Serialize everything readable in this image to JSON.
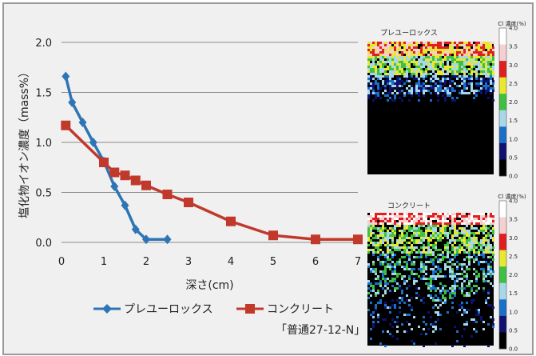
{
  "chart_data": {
    "type": "line",
    "xlabel": "深さ(cm)",
    "ylabel": "塩化物イオン濃度（mass%）",
    "xlim": [
      0,
      7
    ],
    "ylim": [
      0,
      2.0
    ],
    "x_ticks": [
      "0",
      "1",
      "2",
      "3",
      "4",
      "5",
      "6",
      "7"
    ],
    "y_ticks": [
      "0.0",
      "0.5",
      "1.0",
      "1.5",
      "2.0"
    ],
    "grid": true,
    "legend_position": "bottom",
    "series": [
      {
        "name": "プレユーロックス",
        "color": "#2e75b6",
        "marker": "diamond",
        "points": [
          [
            0.1,
            1.66
          ],
          [
            0.25,
            1.4
          ],
          [
            0.5,
            1.2
          ],
          [
            0.75,
            1.0
          ],
          [
            1.0,
            0.81
          ],
          [
            1.25,
            0.56
          ],
          [
            1.5,
            0.37
          ],
          [
            1.75,
            0.13
          ],
          [
            2.0,
            0.03
          ],
          [
            2.5,
            0.03
          ]
        ]
      },
      {
        "name": "コンクリート",
        "note": "「普通27-12-N」",
        "color": "#c0392b",
        "marker": "square",
        "points": [
          [
            0.1,
            1.17
          ],
          [
            1.0,
            0.8
          ],
          [
            1.25,
            0.7
          ],
          [
            1.5,
            0.67
          ],
          [
            1.75,
            0.62
          ],
          [
            2.0,
            0.57
          ],
          [
            2.5,
            0.48
          ],
          [
            3.0,
            0.4
          ],
          [
            4.0,
            0.21
          ],
          [
            5.0,
            0.07
          ],
          [
            6.0,
            0.03
          ],
          [
            7.0,
            0.03
          ]
        ]
      }
    ]
  },
  "maps": [
    {
      "title": "プレユーロックス",
      "colorbar_title": "Cl 濃度(%)",
      "colorbar_ticks": [
        "4.0",
        "3.5",
        "3.0",
        "2.5",
        "2.0",
        "1.5",
        "1.0",
        "0.5",
        "0.0"
      ]
    },
    {
      "title": "コンクリート",
      "colorbar_title": "Cl 濃度(%)",
      "colorbar_ticks": [
        "4.0",
        "3.5",
        "3.0",
        "2.5",
        "2.0",
        "1.5",
        "1.0",
        "0.5",
        "0.0"
      ]
    }
  ],
  "colorbar_colors": [
    "#ffffff",
    "#f4d0d0",
    "#e02020",
    "#e8e830",
    "#40c040",
    "#a8d8e8",
    "#1870c8",
    "#101070",
    "#000000"
  ]
}
